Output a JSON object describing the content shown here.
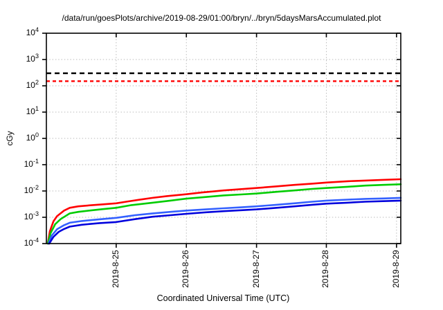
{
  "chart_data": {
    "type": "line",
    "title": "/data/run/goesPlots/archive/2019-08-29/01:00/bryn/../bryn/5daysMarsAccumulated.plot",
    "xlabel": "Coordinated Universal Time (UTC)",
    "ylabel": "cGy",
    "y_scale": "log10",
    "ylim": [
      0.0001,
      10000
    ],
    "y_tick_exponents": [
      4,
      3,
      2,
      1,
      0,
      -1,
      -2,
      -3,
      -4
    ],
    "x_ticks": [
      {
        "label": "2019-8-25",
        "f": 0.197
      },
      {
        "label": "2019-8-26",
        "f": 0.395
      },
      {
        "label": "2019-8-27",
        "f": 0.593
      },
      {
        "label": "2019-8-28",
        "f": 0.79
      },
      {
        "label": "2019-8-29",
        "f": 0.988
      }
    ],
    "grid": true,
    "legend": "none",
    "limit_lines": [
      {
        "name": "black-dose-limit",
        "value_cGy": 300,
        "color": "#000000",
        "dash": [
          7,
          5
        ]
      },
      {
        "name": "red-dose-limit",
        "value_cGy": 150,
        "color": "#ff0000",
        "dash": [
          5,
          4
        ]
      }
    ],
    "series": [
      {
        "name": "red-accumulated-dose",
        "color": "#ff0000",
        "points": [
          [
            0.004,
            0.0001
          ],
          [
            0.01,
            0.0003
          ],
          [
            0.02,
            0.0007
          ],
          [
            0.03,
            0.0011
          ],
          [
            0.05,
            0.0018
          ],
          [
            0.066,
            0.0023
          ],
          [
            0.09,
            0.0026
          ],
          [
            0.13,
            0.0029
          ],
          [
            0.16,
            0.0031
          ],
          [
            0.197,
            0.0034
          ],
          [
            0.23,
            0.004
          ],
          [
            0.26,
            0.0046
          ],
          [
            0.3,
            0.0055
          ],
          [
            0.34,
            0.0064
          ],
          [
            0.395,
            0.0075
          ],
          [
            0.44,
            0.0088
          ],
          [
            0.47,
            0.0096
          ],
          [
            0.5,
            0.0105
          ],
          [
            0.55,
            0.0118
          ],
          [
            0.593,
            0.013
          ],
          [
            0.65,
            0.015
          ],
          [
            0.7,
            0.017
          ],
          [
            0.75,
            0.019
          ],
          [
            0.79,
            0.021
          ],
          [
            0.85,
            0.0235
          ],
          [
            0.9,
            0.025
          ],
          [
            0.95,
            0.0265
          ],
          [
            1.0,
            0.028
          ]
        ]
      },
      {
        "name": "green-accumulated-dose",
        "color": "#00cc00",
        "points": [
          [
            0.004,
            0.0001
          ],
          [
            0.012,
            0.00025
          ],
          [
            0.025,
            0.00055
          ],
          [
            0.04,
            0.00085
          ],
          [
            0.066,
            0.0014
          ],
          [
            0.09,
            0.0016
          ],
          [
            0.13,
            0.00185
          ],
          [
            0.16,
            0.00205
          ],
          [
            0.197,
            0.0023
          ],
          [
            0.24,
            0.0029
          ],
          [
            0.3,
            0.0036
          ],
          [
            0.35,
            0.0043
          ],
          [
            0.395,
            0.0051
          ],
          [
            0.45,
            0.0059
          ],
          [
            0.5,
            0.0068
          ],
          [
            0.55,
            0.0074
          ],
          [
            0.593,
            0.008
          ],
          [
            0.65,
            0.0093
          ],
          [
            0.7,
            0.0105
          ],
          [
            0.75,
            0.012
          ],
          [
            0.79,
            0.013
          ],
          [
            0.85,
            0.0145
          ],
          [
            0.9,
            0.016
          ],
          [
            0.95,
            0.017
          ],
          [
            1.0,
            0.018
          ]
        ]
      },
      {
        "name": "light-blue-accumulated-dose",
        "color": "#3360ff",
        "points": [
          [
            0.006,
            0.0001
          ],
          [
            0.015,
            0.0002
          ],
          [
            0.03,
            0.00035
          ],
          [
            0.05,
            0.0005
          ],
          [
            0.066,
            0.00062
          ],
          [
            0.1,
            0.00072
          ],
          [
            0.15,
            0.00084
          ],
          [
            0.197,
            0.00095
          ],
          [
            0.25,
            0.0012
          ],
          [
            0.3,
            0.0014
          ],
          [
            0.35,
            0.0016
          ],
          [
            0.395,
            0.0018
          ],
          [
            0.45,
            0.002
          ],
          [
            0.5,
            0.0022
          ],
          [
            0.55,
            0.0024
          ],
          [
            0.593,
            0.0026
          ],
          [
            0.65,
            0.003
          ],
          [
            0.7,
            0.0034
          ],
          [
            0.75,
            0.0039
          ],
          [
            0.79,
            0.0043
          ],
          [
            0.85,
            0.0047
          ],
          [
            0.9,
            0.005
          ],
          [
            0.95,
            0.0052
          ],
          [
            1.0,
            0.0055
          ]
        ]
      },
      {
        "name": "dark-blue-accumulated-dose",
        "color": "#0000dd",
        "points": [
          [
            0.008,
            0.0001
          ],
          [
            0.02,
            0.00018
          ],
          [
            0.035,
            0.00028
          ],
          [
            0.05,
            0.00036
          ],
          [
            0.066,
            0.00044
          ],
          [
            0.1,
            0.00052
          ],
          [
            0.15,
            0.0006
          ],
          [
            0.197,
            0.00066
          ],
          [
            0.25,
            0.00085
          ],
          [
            0.3,
            0.00105
          ],
          [
            0.35,
            0.0012
          ],
          [
            0.395,
            0.00135
          ],
          [
            0.45,
            0.00155
          ],
          [
            0.5,
            0.0017
          ],
          [
            0.55,
            0.00185
          ],
          [
            0.593,
            0.002
          ],
          [
            0.65,
            0.0023
          ],
          [
            0.7,
            0.0026
          ],
          [
            0.75,
            0.003
          ],
          [
            0.79,
            0.0033
          ],
          [
            0.85,
            0.0036
          ],
          [
            0.9,
            0.0039
          ],
          [
            0.95,
            0.0041
          ],
          [
            1.0,
            0.0043
          ]
        ]
      }
    ],
    "style": {
      "grid_color": "#bbbbbb",
      "border_color": "#000000",
      "background": "#ffffff"
    }
  }
}
